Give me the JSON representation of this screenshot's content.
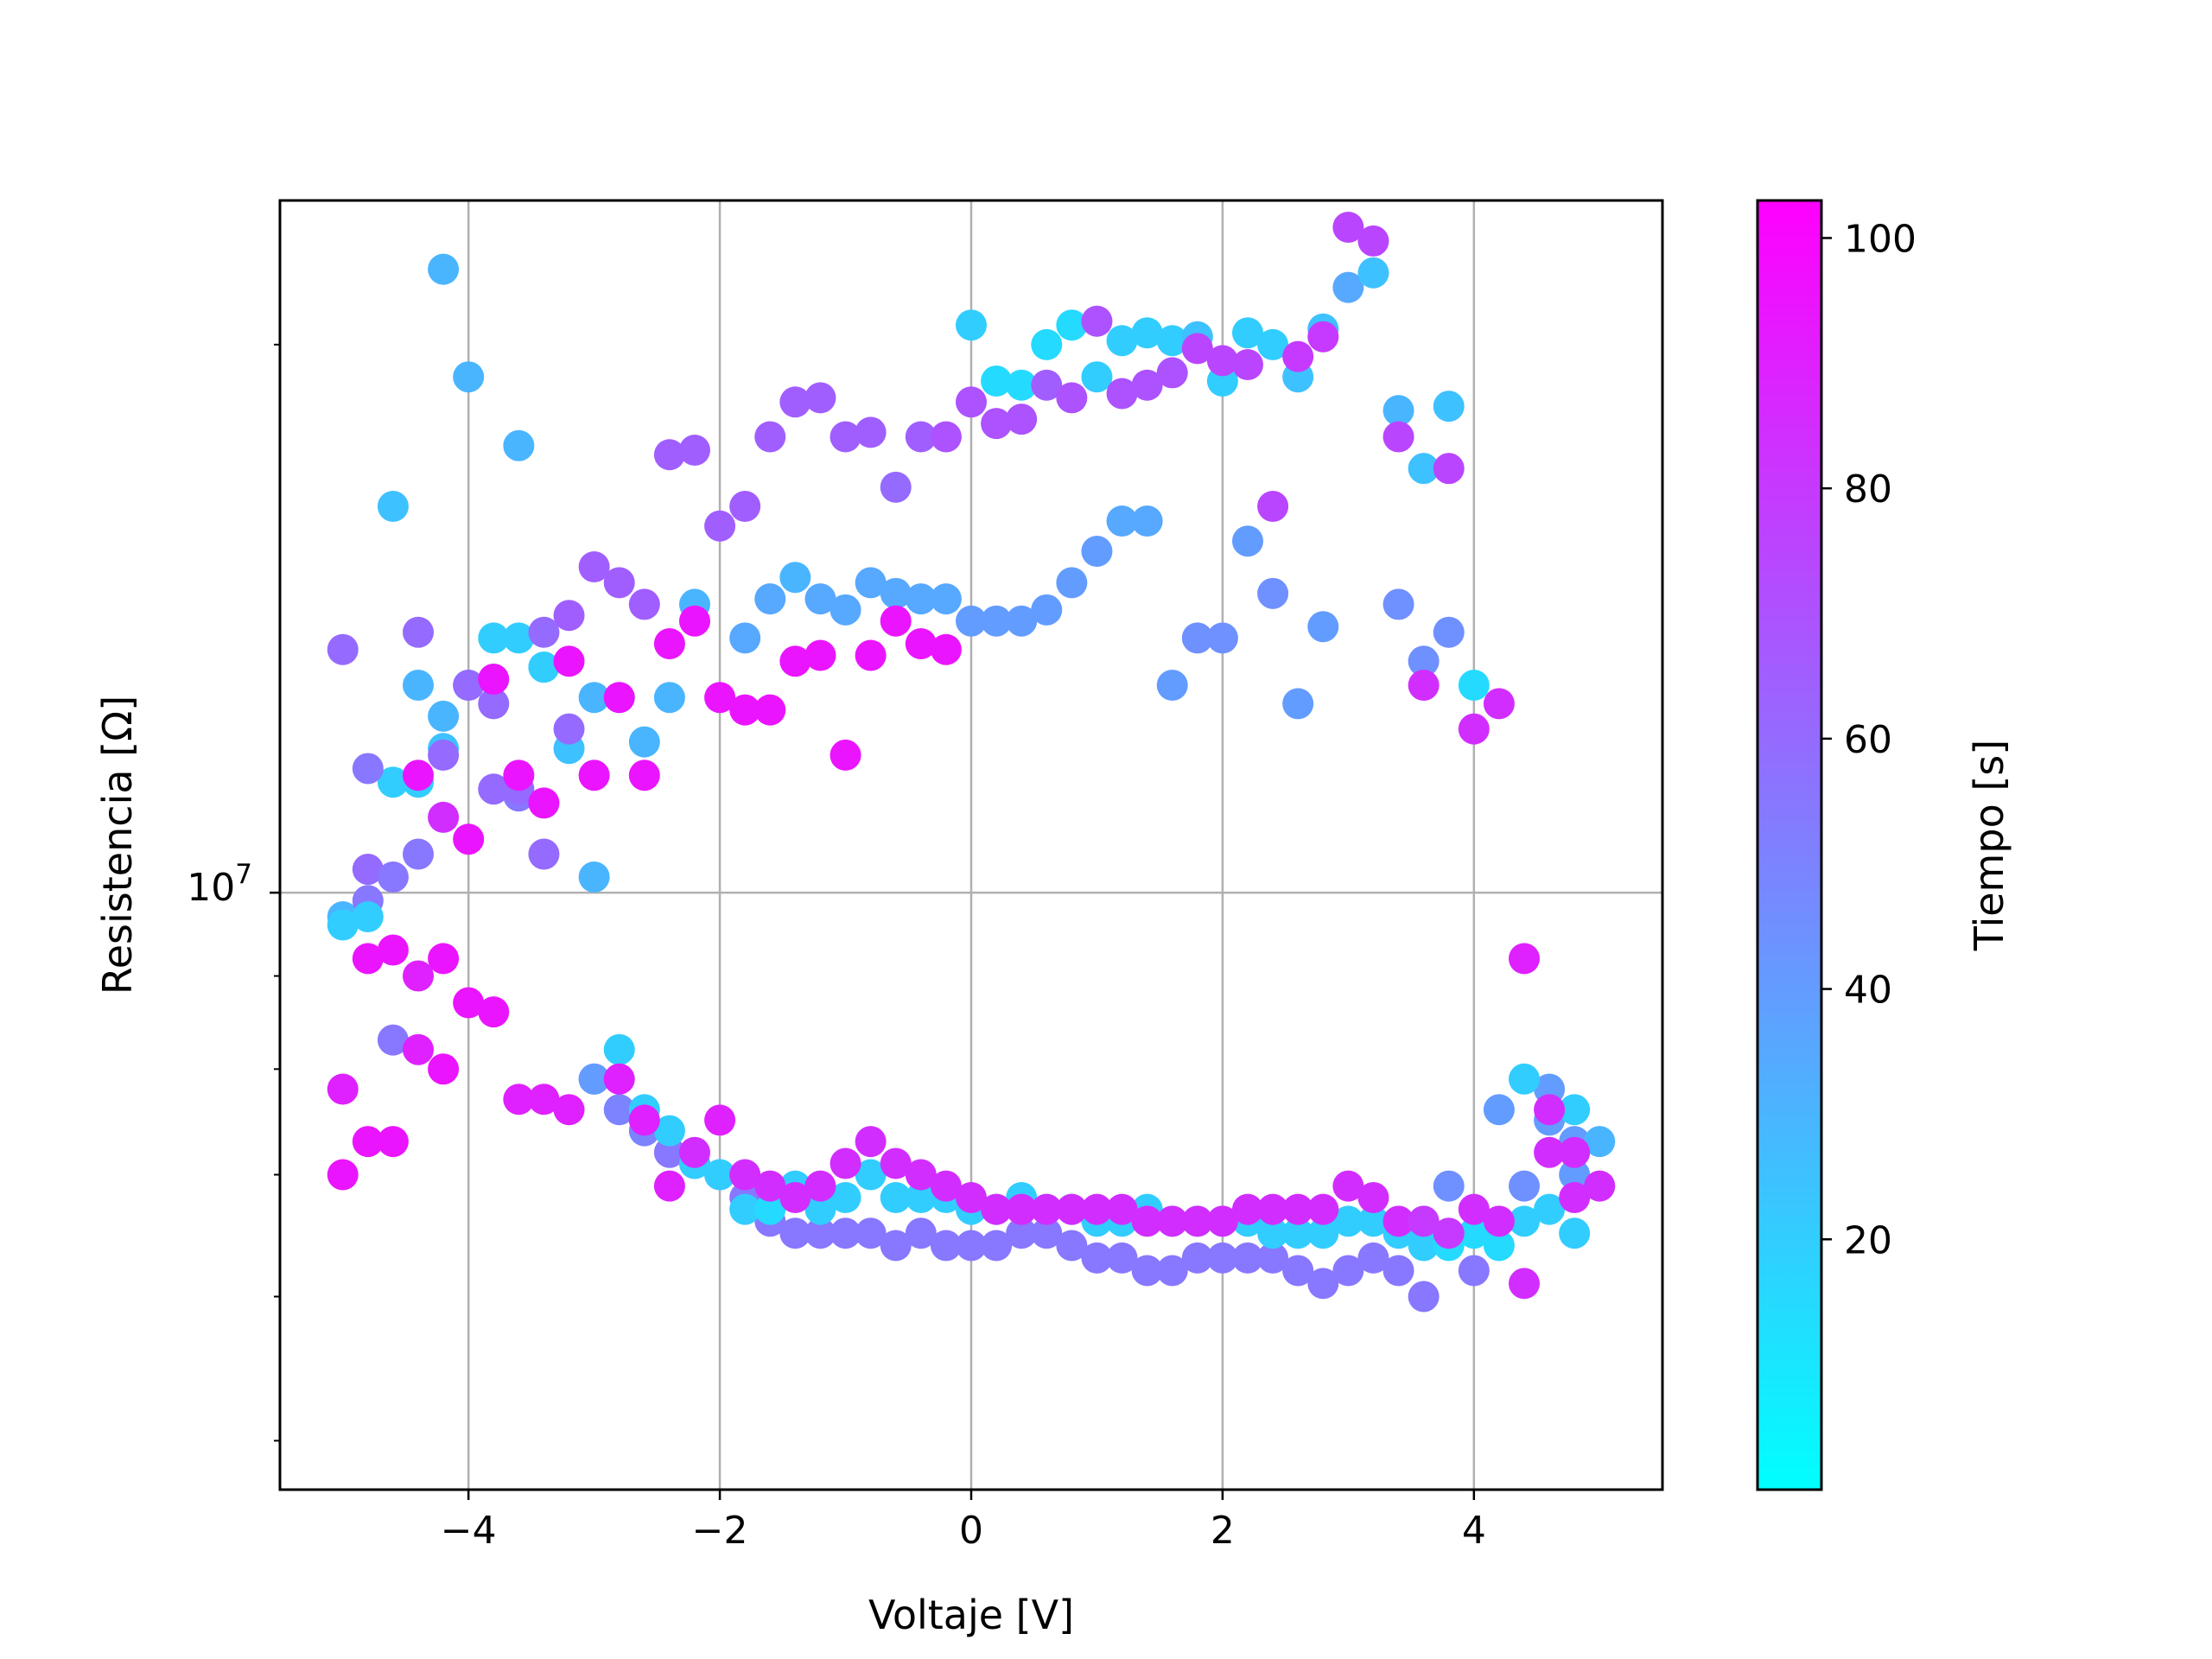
{
  "chart_data": {
    "type": "scatter",
    "title": "",
    "xlabel": "Voltaje [V]",
    "ylabel": "Resistencia [Ω]",
    "xlim": [
      -5.5,
      5.5
    ],
    "ylim": [
      4700000,
      24000000
    ],
    "yscale": "log",
    "xticks": [
      -4,
      -2,
      0,
      2,
      4
    ],
    "xtick_labels": [
      "−4",
      "−2",
      "0",
      "2",
      "4"
    ],
    "ytick_label_base": "10",
    "ytick_label_exp": "7",
    "grid": true,
    "colorbar": {
      "label": "Tiempo [s]",
      "range": [
        0,
        103
      ],
      "ticks": [
        20,
        40,
        60,
        80,
        100
      ],
      "colormap": "cool",
      "colors": [
        "#00ffff",
        "#ff00ff"
      ]
    },
    "points": [
      [
        -5.0,
        9700000,
        30
      ],
      [
        -4.8,
        10300000,
        60
      ],
      [
        -4.6,
        11500000,
        20
      ],
      [
        -4.4,
        11500000,
        20
      ],
      [
        -4.2,
        12000000,
        25
      ],
      [
        -4.0,
        13000000,
        30
      ],
      [
        -3.8,
        13800000,
        20
      ],
      [
        -3.6,
        13800000,
        20
      ],
      [
        -3.4,
        13300000,
        25
      ],
      [
        -3.2,
        12000000,
        25
      ],
      [
        -3.0,
        12800000,
        30
      ],
      [
        -2.8,
        12800000,
        20
      ],
      [
        -2.6,
        12100000,
        30
      ],
      [
        -2.4,
        12800000,
        30
      ],
      [
        -2.2,
        14400000,
        30
      ],
      [
        -1.8,
        13800000,
        35
      ],
      [
        -1.6,
        14500000,
        35
      ],
      [
        -1.4,
        14900000,
        30
      ],
      [
        -1.2,
        14500000,
        35
      ],
      [
        -1.0,
        14300000,
        35
      ],
      [
        -0.8,
        14800000,
        35
      ],
      [
        -0.6,
        14600000,
        35
      ],
      [
        -0.4,
        14500000,
        35
      ],
      [
        -0.2,
        14500000,
        35
      ],
      [
        0.0,
        14100000,
        40
      ],
      [
        0.2,
        14100000,
        40
      ],
      [
        0.4,
        14100000,
        40
      ],
      [
        0.6,
        14300000,
        40
      ],
      [
        0.8,
        14800000,
        40
      ],
      [
        1.0,
        15400000,
        40
      ],
      [
        1.2,
        16000000,
        35
      ],
      [
        1.4,
        16000000,
        35
      ],
      [
        1.6,
        13000000,
        40
      ],
      [
        1.8,
        13800000,
        45
      ],
      [
        2.0,
        13800000,
        45
      ],
      [
        2.2,
        15600000,
        40
      ],
      [
        2.4,
        14600000,
        45
      ],
      [
        2.6,
        12700000,
        40
      ],
      [
        2.8,
        14000000,
        40
      ],
      [
        3.4,
        14400000,
        45
      ],
      [
        3.6,
        13400000,
        45
      ],
      [
        3.8,
        13900000,
        45
      ],
      [
        4.0,
        13000000,
        15
      ],
      [
        -4.6,
        16300000,
        25
      ],
      [
        -4.4,
        13000000,
        30
      ],
      [
        -4.2,
        12500000,
        30
      ],
      [
        -4.2,
        22000000,
        30
      ],
      [
        -4.0,
        19200000,
        30
      ],
      [
        -3.6,
        17600000,
        30
      ],
      [
        -3.4,
        13300000,
        20
      ],
      [
        -3.0,
        10200000,
        30
      ],
      [
        0.0,
        20500000,
        20
      ],
      [
        0.2,
        19100000,
        15
      ],
      [
        0.4,
        19000000,
        15
      ],
      [
        0.6,
        20000000,
        15
      ],
      [
        0.8,
        20500000,
        15
      ],
      [
        1.0,
        19200000,
        20
      ],
      [
        1.2,
        20100000,
        20
      ],
      [
        1.4,
        20300000,
        20
      ],
      [
        1.6,
        20100000,
        20
      ],
      [
        1.8,
        20200000,
        25
      ],
      [
        2.0,
        19100000,
        20
      ],
      [
        2.2,
        20300000,
        20
      ],
      [
        2.4,
        20000000,
        20
      ],
      [
        2.6,
        19200000,
        25
      ],
      [
        2.8,
        20400000,
        25
      ],
      [
        3.0,
        21500000,
        35
      ],
      [
        3.2,
        21900000,
        25
      ],
      [
        3.4,
        18400000,
        30
      ],
      [
        3.6,
        17100000,
        25
      ],
      [
        3.8,
        18500000,
        25
      ],
      [
        -5.0,
        13600000,
        60
      ],
      [
        -4.8,
        11700000,
        55
      ],
      [
        -4.6,
        10200000,
        55
      ],
      [
        -4.4,
        13900000,
        60
      ],
      [
        -4.2,
        11900000,
        60
      ],
      [
        -4.0,
        13000000,
        60
      ],
      [
        -3.8,
        12700000,
        60
      ],
      [
        -3.6,
        11300000,
        55
      ],
      [
        -3.4,
        13900000,
        60
      ],
      [
        -3.2,
        14200000,
        65
      ],
      [
        -3.0,
        15100000,
        65
      ],
      [
        -2.8,
        14800000,
        65
      ],
      [
        -2.6,
        14400000,
        65
      ],
      [
        -2.4,
        17400000,
        65
      ],
      [
        -2.2,
        17500000,
        65
      ],
      [
        -2.0,
        15900000,
        65
      ],
      [
        -1.8,
        16300000,
        65
      ],
      [
        -1.6,
        17800000,
        65
      ],
      [
        -1.4,
        18600000,
        65
      ],
      [
        -1.2,
        18700000,
        65
      ],
      [
        -1.0,
        17800000,
        65
      ],
      [
        -0.8,
        17900000,
        65
      ],
      [
        -0.6,
        16700000,
        60
      ],
      [
        -0.4,
        17800000,
        65
      ],
      [
        -0.2,
        17800000,
        70
      ],
      [
        0.0,
        18600000,
        70
      ],
      [
        0.2,
        18100000,
        70
      ],
      [
        0.4,
        18200000,
        70
      ],
      [
        0.6,
        19000000,
        65
      ],
      [
        0.8,
        18700000,
        70
      ],
      [
        1.0,
        20600000,
        70
      ],
      [
        1.2,
        18800000,
        70
      ],
      [
        1.4,
        19000000,
        70
      ],
      [
        1.6,
        19300000,
        70
      ],
      [
        1.8,
        19900000,
        75
      ],
      [
        2.0,
        19600000,
        75
      ],
      [
        2.2,
        19500000,
        75
      ],
      [
        2.4,
        16300000,
        75
      ],
      [
        2.6,
        19700000,
        80
      ],
      [
        2.8,
        20200000,
        80
      ],
      [
        3.0,
        23200000,
        75
      ],
      [
        3.2,
        22800000,
        75
      ],
      [
        3.4,
        17800000,
        75
      ],
      [
        3.8,
        17100000,
        75
      ],
      [
        -3.8,
        11400000,
        60
      ],
      [
        -3.4,
        10500000,
        60
      ],
      [
        -3.2,
        12300000,
        60
      ],
      [
        -4.8,
        9900000,
        55
      ],
      [
        -4.4,
        10500000,
        55
      ],
      [
        -3.6,
        11400000,
        60
      ],
      [
        -5.0,
        7800000,
        90
      ],
      [
        -4.8,
        9200000,
        95
      ],
      [
        -4.6,
        9300000,
        95
      ],
      [
        -4.4,
        11600000,
        95
      ],
      [
        -4.2,
        9200000,
        95
      ],
      [
        -4.0,
        10700000,
        95
      ],
      [
        -3.8,
        13100000,
        95
      ],
      [
        -3.6,
        11600000,
        95
      ],
      [
        -3.4,
        11200000,
        95
      ],
      [
        -3.2,
        13400000,
        95
      ],
      [
        -3.0,
        11600000,
        95
      ],
      [
        -2.8,
        12800000,
        95
      ],
      [
        -2.6,
        11600000,
        95
      ],
      [
        -2.4,
        13700000,
        95
      ],
      [
        -2.2,
        14100000,
        95
      ],
      [
        -2.0,
        12800000,
        95
      ],
      [
        -1.8,
        12600000,
        95
      ],
      [
        -1.6,
        12600000,
        95
      ],
      [
        -1.4,
        13400000,
        95
      ],
      [
        -1.2,
        13500000,
        95
      ],
      [
        -1.0,
        11900000,
        95
      ],
      [
        -0.8,
        13500000,
        95
      ],
      [
        -0.6,
        14100000,
        95
      ],
      [
        -0.4,
        13700000,
        95
      ],
      [
        -0.2,
        13600000,
        95
      ],
      [
        -4.0,
        8700000,
        95
      ],
      [
        -3.8,
        8600000,
        95
      ],
      [
        -4.4,
        9000000,
        90
      ],
      [
        -4.2,
        11000000,
        85
      ],
      [
        4.0,
        12300000,
        85
      ],
      [
        4.2,
        12700000,
        85
      ],
      [
        3.6,
        13000000,
        85
      ],
      [
        4.4,
        9200000,
        90
      ],
      [
        -5.0,
        9600000,
        20
      ],
      [
        -4.8,
        9700000,
        20
      ],
      [
        -4.6,
        8300000,
        55
      ],
      [
        -3.0,
        7900000,
        55
      ],
      [
        -2.8,
        7600000,
        50
      ],
      [
        -2.6,
        7400000,
        50
      ],
      [
        -2.4,
        7200000,
        55
      ],
      [
        -2.2,
        7100000,
        50
      ],
      [
        -2.0,
        7000000,
        55
      ],
      [
        -1.8,
        6800000,
        55
      ],
      [
        -1.6,
        6600000,
        55
      ],
      [
        -1.4,
        6500000,
        55
      ],
      [
        -1.2,
        6500000,
        55
      ],
      [
        -1.0,
        6500000,
        55
      ],
      [
        -0.8,
        6500000,
        55
      ],
      [
        -0.6,
        6400000,
        55
      ],
      [
        -0.4,
        6500000,
        55
      ],
      [
        -0.2,
        6400000,
        55
      ],
      [
        0.0,
        6400000,
        55
      ],
      [
        0.2,
        6400000,
        55
      ],
      [
        0.4,
        6500000,
        55
      ],
      [
        0.6,
        6500000,
        55
      ],
      [
        0.8,
        6400000,
        55
      ],
      [
        1.0,
        6300000,
        55
      ],
      [
        1.2,
        6300000,
        55
      ],
      [
        1.4,
        6200000,
        55
      ],
      [
        1.6,
        6200000,
        55
      ],
      [
        1.8,
        6300000,
        55
      ],
      [
        2.0,
        6300000,
        55
      ],
      [
        2.2,
        6300000,
        55
      ],
      [
        2.4,
        6300000,
        55
      ],
      [
        2.6,
        6200000,
        55
      ],
      [
        2.8,
        6100000,
        55
      ],
      [
        3.0,
        6200000,
        55
      ],
      [
        3.2,
        6300000,
        55
      ],
      [
        3.4,
        6200000,
        55
      ],
      [
        3.6,
        6000000,
        55
      ],
      [
        3.8,
        6900000,
        45
      ],
      [
        4.0,
        6200000,
        55
      ],
      [
        4.2,
        7600000,
        40
      ],
      [
        4.4,
        6900000,
        45
      ],
      [
        4.6,
        7500000,
        40
      ],
      [
        4.8,
        7300000,
        40
      ],
      [
        5.0,
        7300000,
        30
      ],
      [
        4.6,
        7800000,
        40
      ],
      [
        4.8,
        7000000,
        40
      ],
      [
        -2.8,
        8200000,
        20
      ],
      [
        -3.0,
        7900000,
        40
      ],
      [
        -2.6,
        7600000,
        20
      ],
      [
        -2.4,
        7400000,
        20
      ],
      [
        -2.2,
        7100000,
        20
      ],
      [
        -2.0,
        7000000,
        20
      ],
      [
        -1.8,
        6700000,
        20
      ],
      [
        -1.6,
        6700000,
        15
      ],
      [
        -1.4,
        6900000,
        20
      ],
      [
        -1.2,
        6700000,
        20
      ],
      [
        -1.0,
        6800000,
        20
      ],
      [
        -0.8,
        7000000,
        20
      ],
      [
        -0.6,
        6800000,
        20
      ],
      [
        -0.4,
        6800000,
        20
      ],
      [
        -0.2,
        6800000,
        20
      ],
      [
        0.0,
        6700000,
        20
      ],
      [
        0.2,
        6700000,
        20
      ],
      [
        0.4,
        6800000,
        20
      ],
      [
        0.6,
        6700000,
        20
      ],
      [
        0.8,
        6700000,
        20
      ],
      [
        1.0,
        6600000,
        20
      ],
      [
        1.2,
        6600000,
        20
      ],
      [
        1.4,
        6700000,
        20
      ],
      [
        1.6,
        6600000,
        20
      ],
      [
        1.8,
        6600000,
        20
      ],
      [
        2.0,
        6600000,
        20
      ],
      [
        2.2,
        6600000,
        20
      ],
      [
        2.4,
        6500000,
        20
      ],
      [
        2.6,
        6500000,
        20
      ],
      [
        2.8,
        6500000,
        20
      ],
      [
        3.0,
        6600000,
        20
      ],
      [
        3.2,
        6600000,
        20
      ],
      [
        3.4,
        6500000,
        20
      ],
      [
        3.6,
        6400000,
        20
      ],
      [
        3.8,
        6400000,
        15
      ],
      [
        4.0,
        6500000,
        15
      ],
      [
        4.2,
        6400000,
        15
      ],
      [
        4.4,
        6600000,
        20
      ],
      [
        4.6,
        6700000,
        20
      ],
      [
        4.8,
        6500000,
        20
      ],
      [
        4.4,
        7900000,
        20
      ],
      [
        4.8,
        7600000,
        20
      ],
      [
        -5.0,
        7000000,
        95
      ],
      [
        -4.8,
        7300000,
        95
      ],
      [
        -4.6,
        7300000,
        95
      ],
      [
        -4.4,
        8200000,
        90
      ],
      [
        -4.2,
        8000000,
        95
      ],
      [
        -3.6,
        7700000,
        90
      ],
      [
        -3.4,
        7700000,
        90
      ],
      [
        -3.2,
        7600000,
        90
      ],
      [
        -2.8,
        7900000,
        90
      ],
      [
        -2.6,
        7500000,
        90
      ],
      [
        -2.4,
        6900000,
        90
      ],
      [
        -2.2,
        7200000,
        85
      ],
      [
        -2.0,
        7500000,
        90
      ],
      [
        -1.8,
        7000000,
        85
      ],
      [
        -1.6,
        6900000,
        85
      ],
      [
        -1.4,
        6800000,
        85
      ],
      [
        -1.2,
        6900000,
        85
      ],
      [
        -1.0,
        7100000,
        85
      ],
      [
        -0.8,
        7300000,
        85
      ],
      [
        -0.6,
        7100000,
        85
      ],
      [
        -0.4,
        7000000,
        85
      ],
      [
        -0.2,
        6900000,
        85
      ],
      [
        0.0,
        6800000,
        85
      ],
      [
        0.2,
        6700000,
        85
      ],
      [
        0.4,
        6700000,
        85
      ],
      [
        0.6,
        6700000,
        85
      ],
      [
        0.8,
        6700000,
        85
      ],
      [
        1.0,
        6700000,
        85
      ],
      [
        1.2,
        6700000,
        85
      ],
      [
        1.4,
        6600000,
        85
      ],
      [
        1.6,
        6600000,
        85
      ],
      [
        1.8,
        6600000,
        85
      ],
      [
        2.0,
        6600000,
        85
      ],
      [
        2.2,
        6700000,
        85
      ],
      [
        2.4,
        6700000,
        85
      ],
      [
        2.6,
        6700000,
        85
      ],
      [
        2.8,
        6700000,
        85
      ],
      [
        3.0,
        6900000,
        85
      ],
      [
        3.2,
        6800000,
        85
      ],
      [
        3.4,
        6600000,
        85
      ],
      [
        3.6,
        6600000,
        80
      ],
      [
        3.8,
        6500000,
        80
      ],
      [
        4.0,
        6700000,
        85
      ],
      [
        4.2,
        6600000,
        85
      ],
      [
        4.4,
        6100000,
        85
      ],
      [
        4.6,
        7200000,
        85
      ],
      [
        4.8,
        7200000,
        85
      ],
      [
        5.0,
        6900000,
        85
      ],
      [
        4.6,
        7600000,
        85
      ],
      [
        4.8,
        6800000,
        85
      ]
    ]
  }
}
